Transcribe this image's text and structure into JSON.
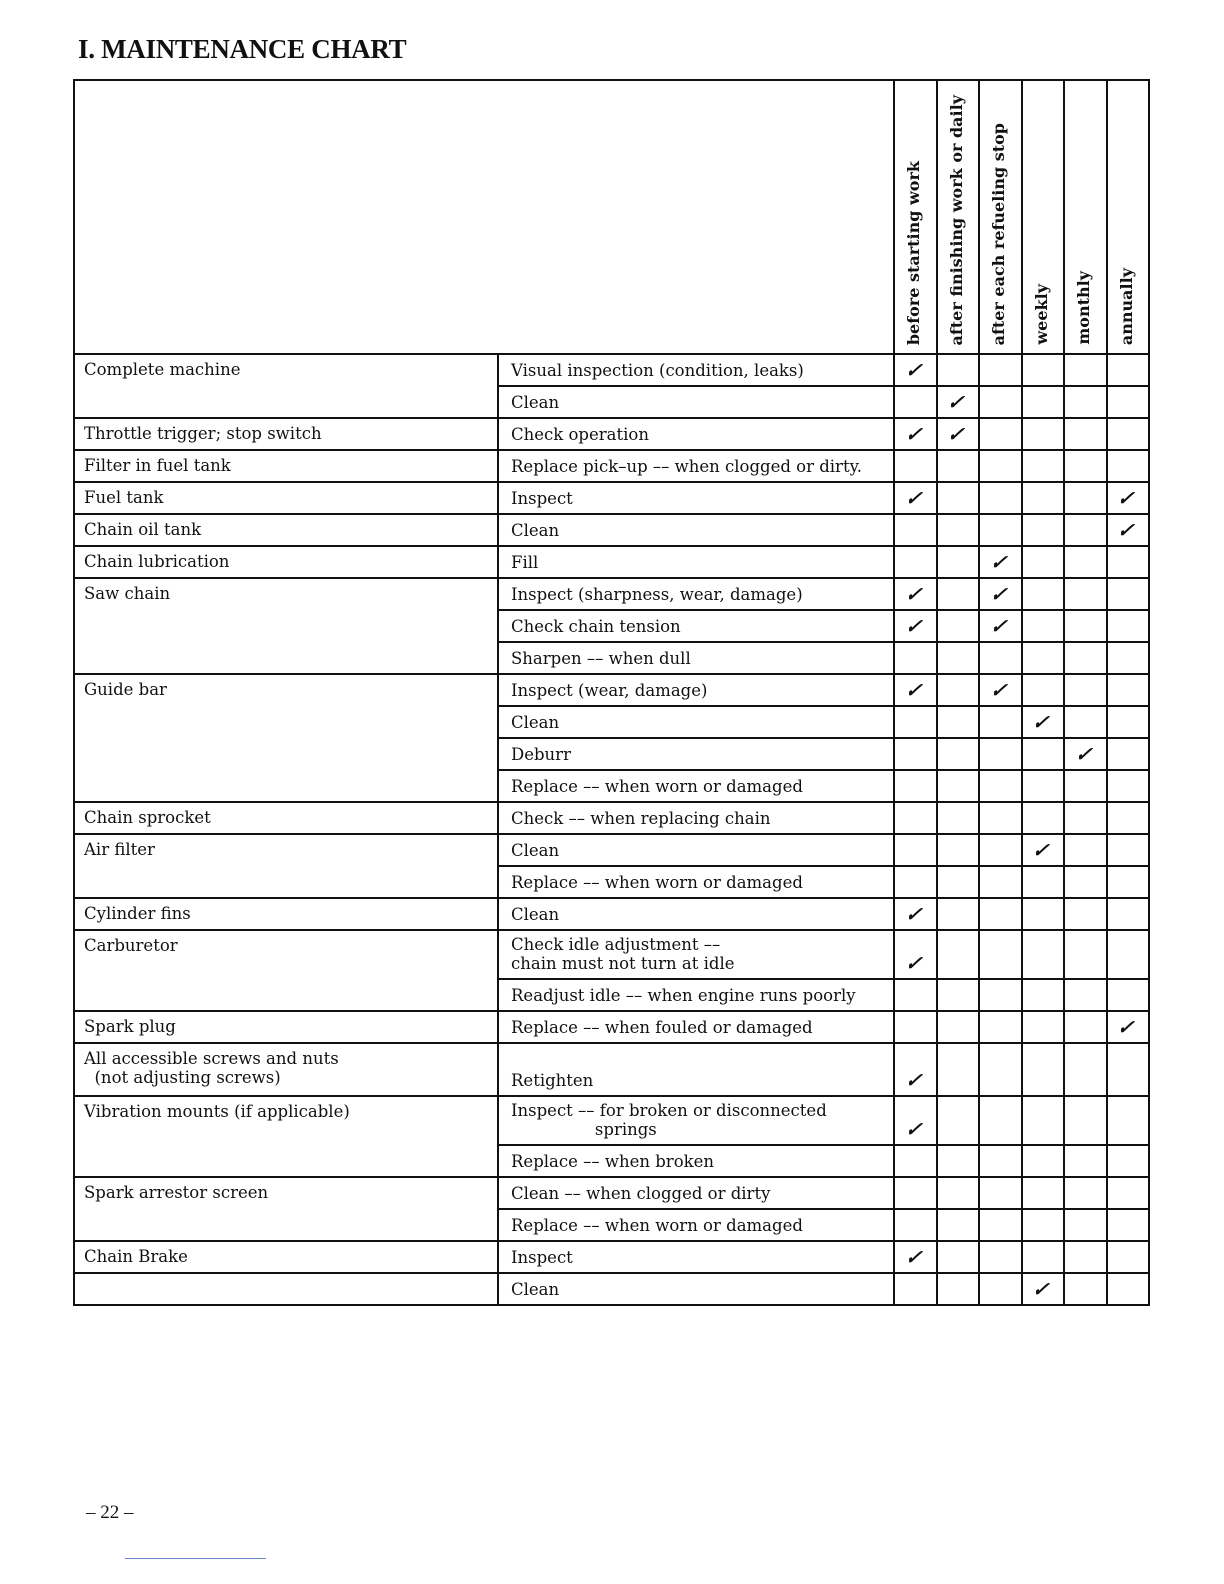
{
  "title": "I.  MAINTENANCE CHART",
  "columns": [
    "before starting work",
    "after finishing work or daily",
    "after each refueling stop",
    "weekly",
    "monthly",
    "annually"
  ],
  "check_mark": "check-icon",
  "groups": [
    {
      "component": "Complete machine",
      "rows": [
        {
          "op": "Visual inspection (condition, leaks)",
          "checks": [
            0
          ]
        },
        {
          "op": "Clean",
          "checks": [
            1
          ]
        }
      ]
    },
    {
      "component": "Throttle trigger; stop switch",
      "rows": [
        {
          "op": "Check operation",
          "checks": [
            0,
            1
          ]
        }
      ]
    },
    {
      "component": "Filter in fuel tank",
      "rows": [
        {
          "op": "Replace pick–up –– when clogged or dirty.",
          "checks": []
        }
      ]
    },
    {
      "component": "Fuel tank",
      "rows": [
        {
          "op": "Inspect",
          "checks": [
            0,
            5
          ]
        }
      ]
    },
    {
      "component": "Chain oil tank",
      "rows": [
        {
          "op": "Clean",
          "checks": [
            5
          ]
        }
      ]
    },
    {
      "component": "Chain lubrication",
      "rows": [
        {
          "op": "Fill",
          "checks": [
            2
          ]
        }
      ]
    },
    {
      "component": "Saw chain",
      "rows": [
        {
          "op": "Inspect (sharpness, wear, damage)",
          "checks": [
            0,
            2
          ]
        },
        {
          "op": "Check chain tension",
          "checks": [
            0,
            2
          ]
        },
        {
          "op": "Sharpen –– when dull",
          "checks": []
        }
      ]
    },
    {
      "component": "Guide bar",
      "rows": [
        {
          "op": "Inspect (wear, damage)",
          "checks": [
            0,
            2
          ]
        },
        {
          "op": "Clean",
          "checks": [
            3
          ]
        },
        {
          "op": "Deburr",
          "checks": [
            4
          ]
        },
        {
          "op": "Replace –– when worn or damaged",
          "checks": []
        }
      ]
    },
    {
      "component": "Chain sprocket",
      "rows": [
        {
          "op": "Check –– when replacing chain",
          "checks": []
        }
      ]
    },
    {
      "component": "Air filter",
      "rows": [
        {
          "op": "Clean",
          "checks": [
            3
          ]
        },
        {
          "op": "Replace –– when worn or damaged",
          "checks": []
        }
      ]
    },
    {
      "component": "Cylinder fins",
      "rows": [
        {
          "op": "Clean",
          "checks": [
            0
          ]
        }
      ]
    },
    {
      "component": "Carburetor",
      "rows": [
        {
          "op": "Check idle adjustment ––\nchain must not turn at idle",
          "checks": [
            0
          ]
        },
        {
          "op": "Readjust idle –– when engine runs poorly",
          "checks": []
        }
      ]
    },
    {
      "component": "Spark plug",
      "rows": [
        {
          "op": "Replace –– when fouled or damaged",
          "checks": [
            5
          ]
        }
      ]
    },
    {
      "component": "All accessible screws and nuts\n  (not adjusting screws)",
      "rows": [
        {
          "op": "Retighten",
          "checks": [
            0
          ],
          "tall": true
        }
      ]
    },
    {
      "component": "Vibration mounts (if applicable)",
      "rows": [
        {
          "op": "Inspect –– for broken or disconnected\n                springs",
          "checks": [
            0
          ]
        },
        {
          "op": "Replace –– when broken",
          "checks": []
        }
      ]
    },
    {
      "component": "Spark arrestor screen",
      "rows": [
        {
          "op": "Clean –– when clogged or dirty",
          "checks": []
        },
        {
          "op": "Replace –– when worn or damaged",
          "checks": []
        }
      ]
    },
    {
      "component": "Chain Brake",
      "rows": [
        {
          "op": "Inspect",
          "checks": [
            0
          ]
        }
      ]
    },
    {
      "component": "",
      "rows": [
        {
          "op": "Clean",
          "checks": [
            3
          ]
        }
      ]
    }
  ],
  "page_number": "– 22 –"
}
